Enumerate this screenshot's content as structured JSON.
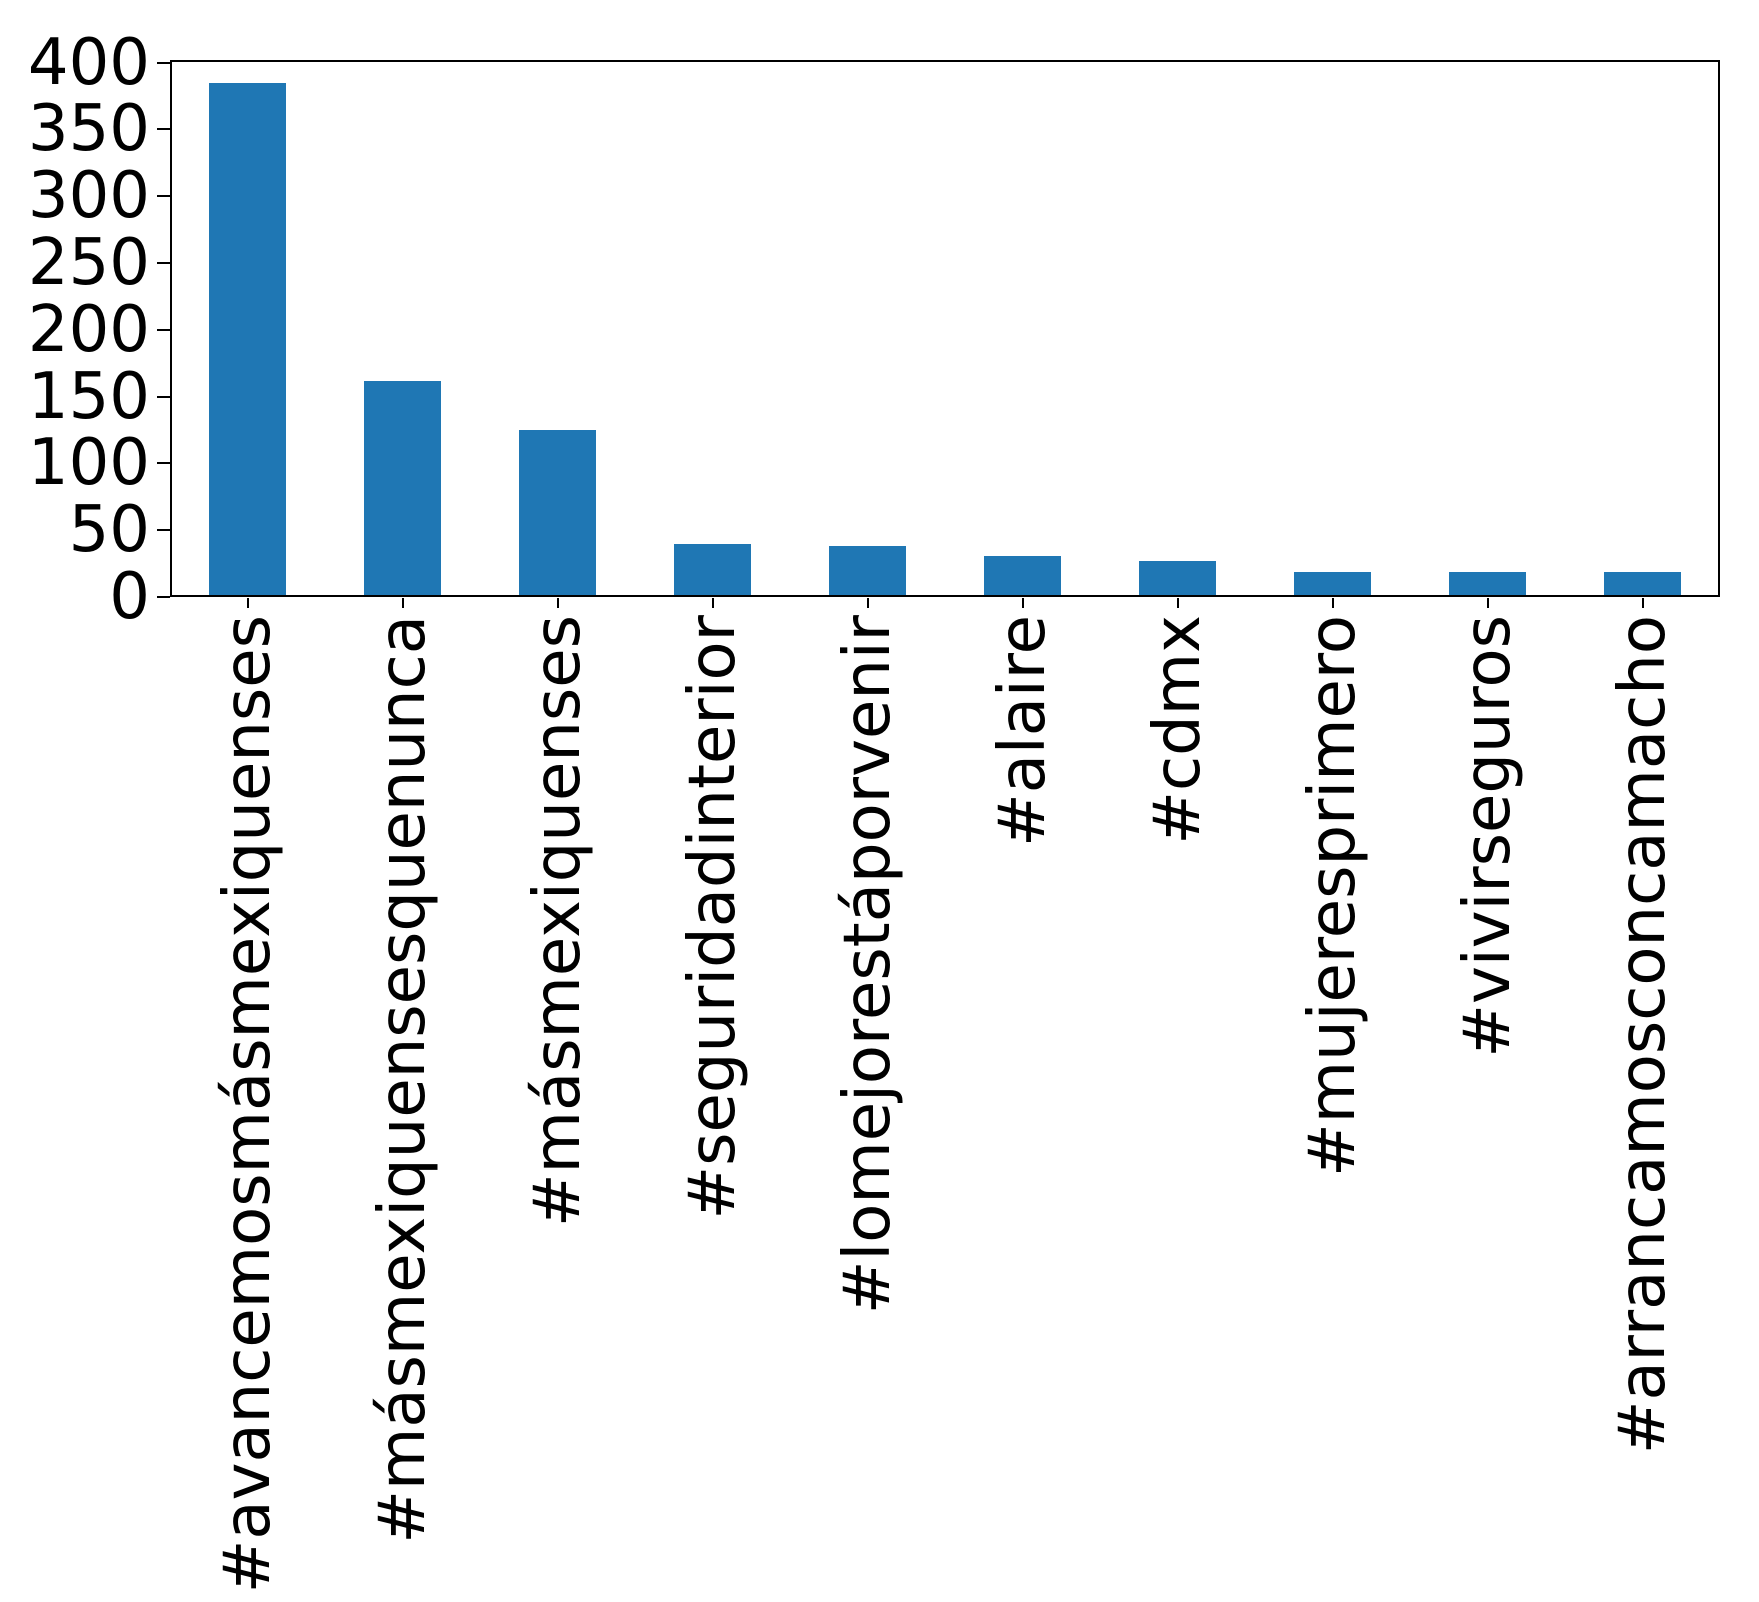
{
  "chart_data": {
    "type": "bar",
    "title": "",
    "xlabel": "",
    "ylabel": "",
    "categories": [
      "#avancemosmásmexiquenses",
      "#másmexiquensesquenunca",
      "#másmexiquenses",
      "#seguridadinterior",
      "#lomejorestáporvenir",
      "#alaire",
      "#cdmx",
      "#mujeresprimero",
      "#vivirseguros",
      "#arrancamosconcamacho"
    ],
    "values": [
      385,
      162,
      125,
      40,
      38,
      31,
      27,
      19,
      19,
      19
    ],
    "yticks": [
      0,
      50,
      100,
      150,
      200,
      250,
      300,
      350,
      400
    ],
    "ylim": [
      0,
      402
    ],
    "bar_color": "#1f77b4",
    "axis_color": "#000000",
    "background_color": "#ffffff",
    "grid": false,
    "legend": false,
    "x_tick_rotation": 90,
    "bar_width_fraction": 0.5
  }
}
